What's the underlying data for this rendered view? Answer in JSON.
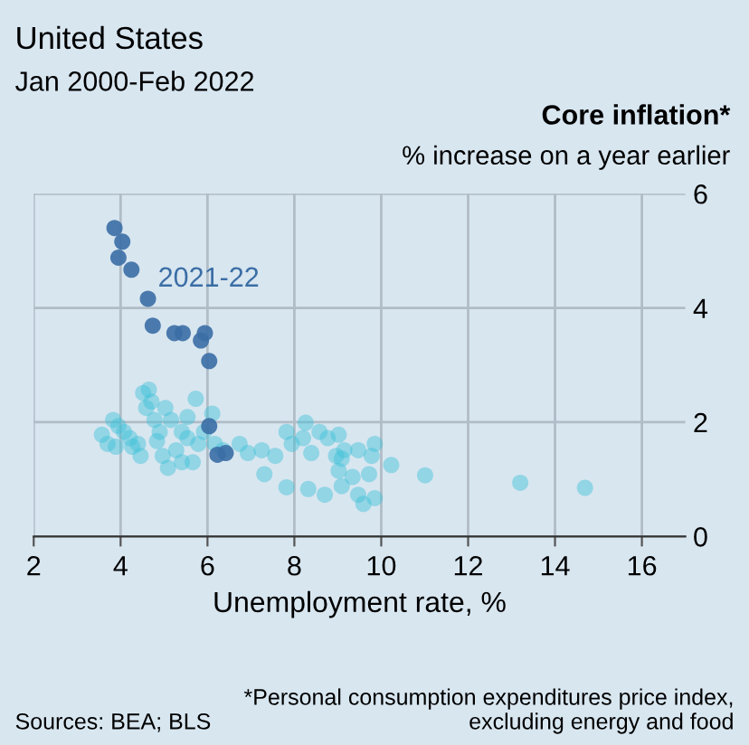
{
  "chart_data": {
    "type": "scatter",
    "title": "United States",
    "subtitle": "Jan 2000-Feb 2022",
    "ylabel": "Core inflation*",
    "xlabel": "Unemployment rate, %",
    "annotations": [
      "% increase on a year earlier",
      "Sources: BEA; BLS",
      "*Personal consumption expenditures price index, excluding energy and food"
    ],
    "xlim": [
      2,
      17
    ],
    "xticks": [
      2,
      4,
      6,
      8,
      10,
      12,
      14,
      16
    ],
    "ylim": [
      0,
      6
    ],
    "yticks": [
      0,
      2,
      4,
      6
    ],
    "grid": true,
    "legend": false,
    "marker": "circle",
    "series": [
      {
        "color": "#3fc1d6",
        "x": [
          3.57,
          3.7,
          3.83,
          3.95,
          4.08,
          4.21,
          4.4,
          4.52,
          4.65,
          4.59,
          4.71,
          4.78,
          4.9,
          5.03,
          5.16,
          4.97,
          5.09,
          5.28,
          5.41,
          5.54,
          5.73,
          5.79,
          5.66,
          5.92,
          6.11,
          6.17,
          6.36,
          6.74,
          6.93,
          7.25,
          7.56,
          7.31,
          7.82,
          7.94,
          8.26,
          8.2,
          8.39,
          8.58,
          8.77,
          9.02,
          8.96,
          9.15,
          9.47,
          9.85,
          9.78,
          10.23,
          9.02,
          9.34,
          9.72,
          7.82,
          8.32,
          8.7,
          9.09,
          9.47,
          9.59,
          9.85,
          11.01,
          13.2,
          14.69,
          3.89,
          4.27,
          4.46,
          4.84,
          5.54,
          5.41,
          9.09
        ],
        "values": [
          1.78,
          1.62,
          2.04,
          1.93,
          1.83,
          1.72,
          1.62,
          2.51,
          2.57,
          2.25,
          2.36,
          2.04,
          1.83,
          2.25,
          2.04,
          1.41,
          1.2,
          1.51,
          1.83,
          2.09,
          2.41,
          1.62,
          1.3,
          1.83,
          2.15,
          1.62,
          1.51,
          1.62,
          1.46,
          1.51,
          1.41,
          1.09,
          1.83,
          1.62,
          1.99,
          1.72,
          1.46,
          1.83,
          1.72,
          1.78,
          1.41,
          1.51,
          1.51,
          1.62,
          1.41,
          1.25,
          1.15,
          1.04,
          1.09,
          0.86,
          0.83,
          0.73,
          0.88,
          0.73,
          0.57,
          0.67,
          1.07,
          0.94,
          0.85,
          1.57,
          1.57,
          1.41,
          1.67,
          1.72,
          1.3,
          1.36
        ]
      },
      {
        "name": "2021-22",
        "color": "#3b6ea5",
        "x": [
          3.86,
          4.04,
          3.95,
          4.25,
          4.63,
          4.74,
          5.24,
          5.43,
          5.85,
          5.94,
          6.04,
          6.04,
          6.23,
          6.42
        ],
        "values": [
          5.4,
          5.16,
          4.88,
          4.67,
          4.16,
          3.69,
          3.56,
          3.56,
          3.43,
          3.56,
          3.07,
          1.93,
          1.43,
          1.46
        ]
      }
    ]
  }
}
